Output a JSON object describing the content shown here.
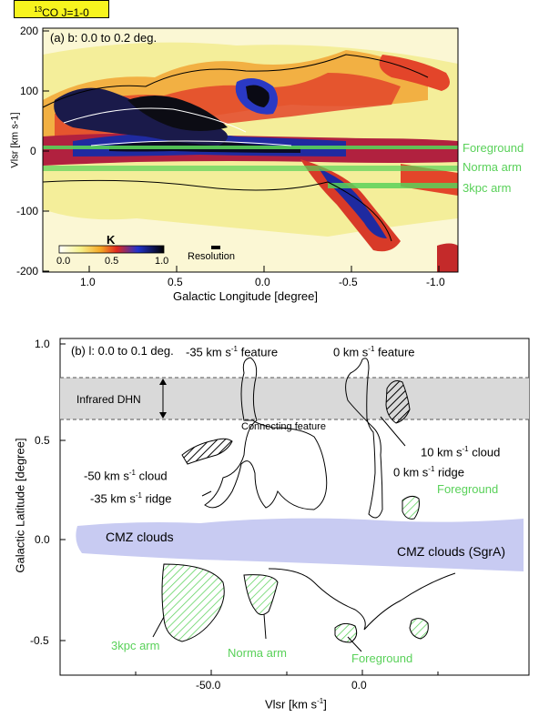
{
  "panel_a": {
    "tag_prefix": "13",
    "tag_rest": "CO J=1-0",
    "title": "(a) b: 0.0 to 0.2 deg.",
    "ylabel": "Vlsr [km s-1]",
    "xlabel": "Galactic Longitude [degree]",
    "yticks": [
      "200",
      "100",
      "0",
      "-100",
      "-200"
    ],
    "xticks": [
      "1.0",
      "0.5",
      "0.0",
      "-0.5",
      "-1.0"
    ],
    "colorbar_unit": "K",
    "colorbar_ticks": [
      "0.0",
      "0.5",
      "1.0"
    ],
    "resolution_label": "Resolution",
    "annotations": {
      "foreground": "Foreground",
      "norma_arm": "Norma arm",
      "kpc_arm": "3kpc arm"
    }
  },
  "panel_b": {
    "title": "(b) l: 0.0 to 0.1 deg.",
    "ylabel": "Galactic Latitude [degree]",
    "xlabel_prefix": "Vlsr [km s",
    "xlabel_suffix": "]",
    "yticks": [
      "1.0",
      "0.5",
      "0.0",
      "-0.5"
    ],
    "xticks": [
      "-50.0",
      "0.0"
    ],
    "labels": {
      "infrared_dhn": "Infrared DHN",
      "feature_m35": "-35 km s",
      "feature_m35_tail": " feature",
      "feature_0": "0 km s",
      "feature_0_tail": " feature",
      "connecting": "Connecting feature",
      "cloud_10": "10 km s",
      "cloud_10_tail": " cloud",
      "cloud_m50": "-50 km s",
      "cloud_m50_tail": " cloud",
      "ridge_m35": "-35 km s",
      "ridge_m35_tail": " ridge",
      "ridge_0": "0 km s",
      "ridge_0_tail": " ridge",
      "cmz_left": "CMZ clouds",
      "cmz_right": "CMZ clouds (SgrA)",
      "foreground_top": "Foreground",
      "kpc_arm": "3kpc arm",
      "norma_arm": "Norma arm",
      "foreground_bottom": "Foreground"
    }
  },
  "colors": {
    "green_label": "#59d159",
    "cmz_fill": "#c8cbf2",
    "dhn_fill": "#d9d9d9",
    "tag_fill": "#f7f41e"
  }
}
